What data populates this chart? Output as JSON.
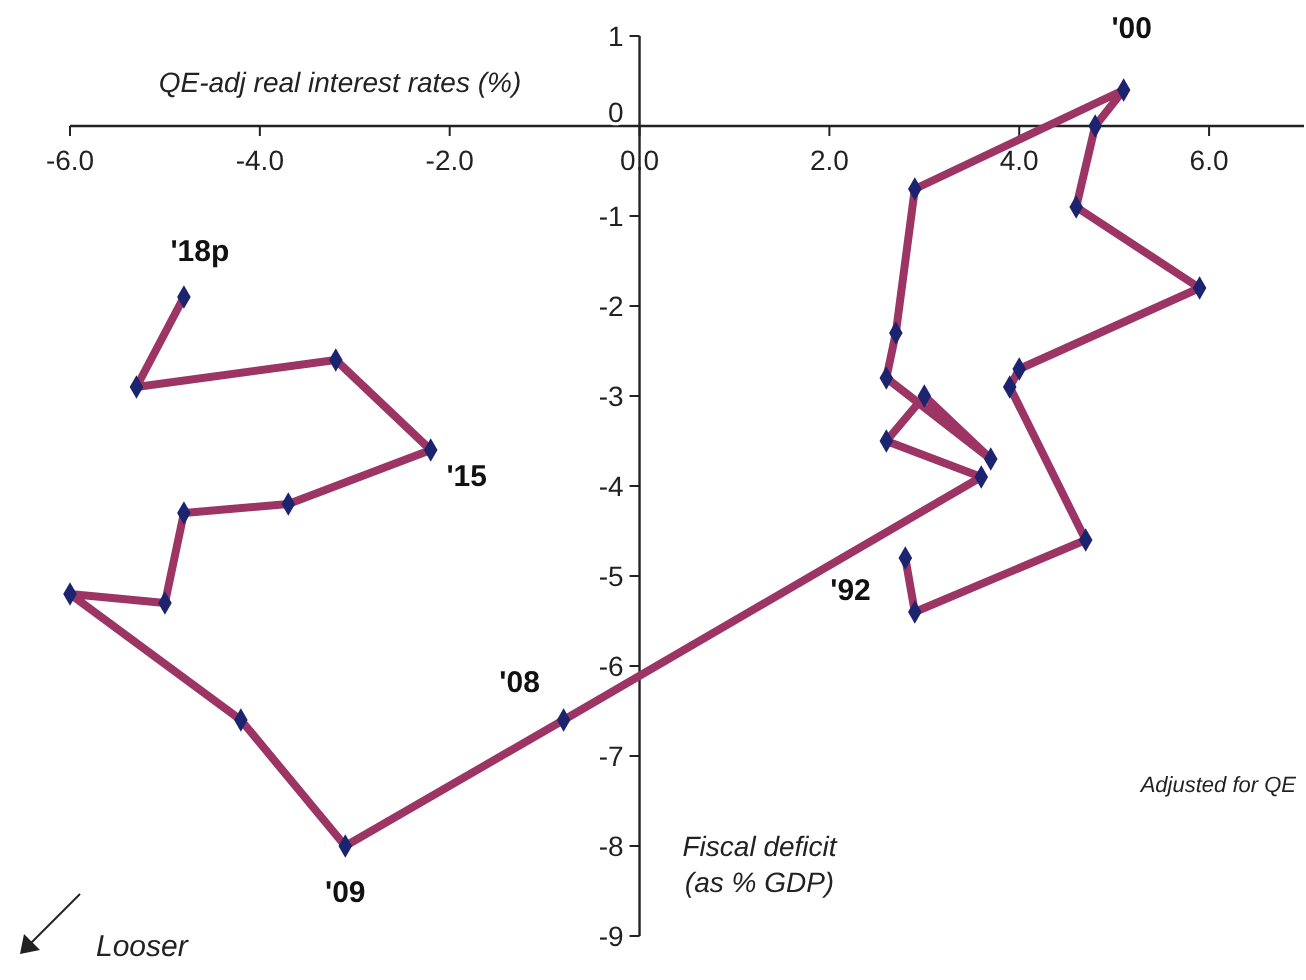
{
  "chart_data": {
    "type": "line",
    "xlabel": "Fiscal deficit\n(as % GDP)",
    "ylabel": "QE-adj real interest rates (%)",
    "x": [
      2.8,
      2.9,
      4.7,
      3.9,
      4.0,
      5.9,
      4.6,
      4.8,
      5.1,
      2.9,
      2.7,
      2.6,
      3.7,
      3.0,
      2.6,
      3.6,
      -0.8,
      -3.1,
      -4.2,
      -6.0,
      -5.0,
      -4.8,
      -3.7,
      -2.2,
      -3.2,
      -5.3,
      -4.8
    ],
    "series": [
      {
        "color": "#9c3563",
        "values": [
          -4.8,
          -5.4,
          -4.6,
          -2.9,
          -2.7,
          -1.8,
          -0.9,
          0.0,
          0.4,
          -0.7,
          -2.3,
          -2.8,
          -3.7,
          -3.0,
          -3.5,
          -3.9,
          -6.6,
          -8.0,
          -6.6,
          -5.2,
          -5.3,
          -4.3,
          -4.2,
          -3.6,
          -2.6,
          -2.9,
          -1.9
        ]
      }
    ],
    "marker": "diamond",
    "line_style": "solid",
    "grid": false,
    "xlim": [
      -6,
      7
    ],
    "ylim": [
      -9,
      1
    ],
    "xticks": [
      {
        "value": -6,
        "label": "-6.0"
      },
      {
        "value": -4,
        "label": "-4.0"
      },
      {
        "value": -2,
        "label": "-2.0"
      },
      {
        "value": 0,
        "label": "0.0"
      },
      {
        "value": 2,
        "label": "2.0"
      },
      {
        "value": 4,
        "label": "4.0"
      },
      {
        "value": 6,
        "label": "6.0"
      }
    ],
    "yticks": [
      -9,
      -8,
      -7,
      -6,
      -5,
      -4,
      -3,
      -2,
      -1,
      0,
      1
    ],
    "annotations": [
      {
        "text": "'92",
        "x": 2.9,
        "y": -5.4
      },
      {
        "text": "'00",
        "x": 5.1,
        "y": 0.4
      },
      {
        "text": "'08",
        "x": -0.8,
        "y": -6.6
      },
      {
        "text": "'09",
        "x": -3.1,
        "y": -8.0
      },
      {
        "text": "'15",
        "x": -2.2,
        "y": -3.6
      },
      {
        "text": "'18p",
        "x": -4.8,
        "y": -1.9
      },
      "Adjusted for QE",
      "Looser"
    ]
  }
}
